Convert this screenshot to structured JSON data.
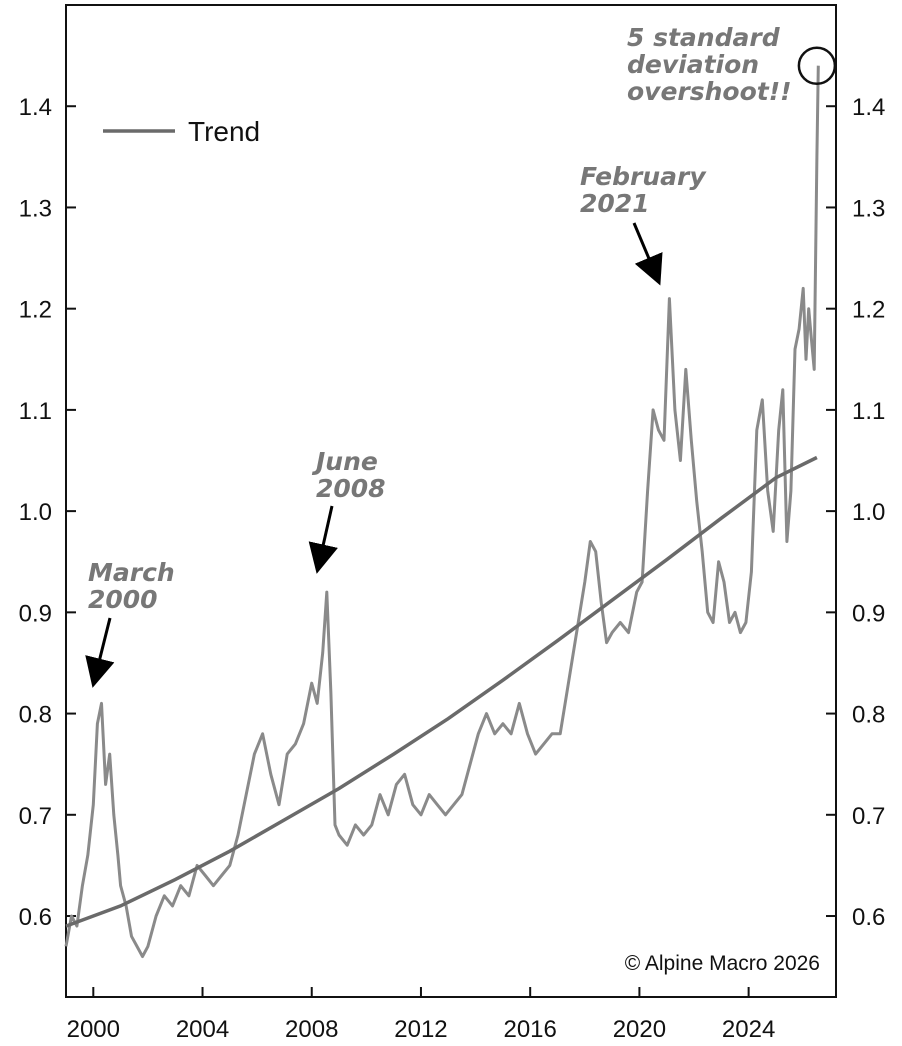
{
  "chart_data": {
    "type": "line",
    "title": "",
    "xlabel": "",
    "ylabel": "",
    "xlim": [
      1999.0,
      2027.2
    ],
    "ylim": [
      0.52,
      1.5
    ],
    "x_ticks": [
      2000,
      2004,
      2008,
      2012,
      2016,
      2020,
      2024
    ],
    "y_ticks": [
      0.6,
      0.7,
      0.8,
      0.9,
      1.0,
      1.1,
      1.2,
      1.3,
      1.4
    ],
    "grid": false,
    "legend": {
      "position": "top-left",
      "entries": [
        "Trend"
      ]
    },
    "colors": {
      "series": "#8a8a8a",
      "trend": "#6a6a6a",
      "annotation": "#777777",
      "axis": "#111111"
    },
    "series": [
      {
        "x": [
          1999.0,
          1999.2,
          1999.4,
          1999.6,
          1999.8,
          2000.0,
          2000.15,
          2000.3,
          2000.45,
          2000.6,
          2000.75,
          2000.9,
          2001.0,
          2001.2,
          2001.4,
          2001.6,
          2001.8,
          2002.0,
          2002.3,
          2002.6,
          2002.9,
          2003.2,
          2003.5,
          2003.8,
          2004.1,
          2004.4,
          2004.7,
          2005.0,
          2005.3,
          2005.6,
          2005.9,
          2006.2,
          2006.5,
          2006.8,
          2007.1,
          2007.4,
          2007.7,
          2008.0,
          2008.2,
          2008.4,
          2008.55,
          2008.7,
          2008.85,
          2009.0,
          2009.3,
          2009.6,
          2009.9,
          2010.2,
          2010.5,
          2010.8,
          2011.1,
          2011.4,
          2011.7,
          2012.0,
          2012.3,
          2012.6,
          2012.9,
          2013.2,
          2013.5,
          2013.8,
          2014.1,
          2014.4,
          2014.7,
          2015.0,
          2015.3,
          2015.6,
          2015.9,
          2016.2,
          2016.5,
          2016.8,
          2017.1,
          2017.4,
          2017.7,
          2018.0,
          2018.2,
          2018.4,
          2018.6,
          2018.8,
          2019.0,
          2019.3,
          2019.6,
          2019.9,
          2020.1,
          2020.3,
          2020.5,
          2020.7,
          2020.9,
          2021.1,
          2021.3,
          2021.5,
          2021.7,
          2021.9,
          2022.1,
          2022.3,
          2022.5,
          2022.7,
          2022.9,
          2023.1,
          2023.3,
          2023.5,
          2023.7,
          2023.9,
          2024.1,
          2024.3,
          2024.5,
          2024.7,
          2024.9,
          2025.1,
          2025.25,
          2025.4,
          2025.55,
          2025.7,
          2025.85,
          2026.0,
          2026.1,
          2026.2,
          2026.3,
          2026.4,
          2026.5,
          2026.55
        ],
        "y": [
          0.57,
          0.6,
          0.59,
          0.63,
          0.66,
          0.71,
          0.79,
          0.81,
          0.73,
          0.76,
          0.7,
          0.66,
          0.63,
          0.61,
          0.58,
          0.57,
          0.56,
          0.57,
          0.6,
          0.62,
          0.61,
          0.63,
          0.62,
          0.65,
          0.64,
          0.63,
          0.64,
          0.65,
          0.68,
          0.72,
          0.76,
          0.78,
          0.74,
          0.71,
          0.76,
          0.77,
          0.79,
          0.83,
          0.81,
          0.86,
          0.92,
          0.82,
          0.69,
          0.68,
          0.67,
          0.69,
          0.68,
          0.69,
          0.72,
          0.7,
          0.73,
          0.74,
          0.71,
          0.7,
          0.72,
          0.71,
          0.7,
          0.71,
          0.72,
          0.75,
          0.78,
          0.8,
          0.78,
          0.79,
          0.78,
          0.81,
          0.78,
          0.76,
          0.77,
          0.78,
          0.78,
          0.83,
          0.88,
          0.93,
          0.97,
          0.96,
          0.91,
          0.87,
          0.88,
          0.89,
          0.88,
          0.92,
          0.93,
          1.02,
          1.1,
          1.08,
          1.07,
          1.21,
          1.1,
          1.05,
          1.14,
          1.07,
          1.01,
          0.96,
          0.9,
          0.89,
          0.95,
          0.93,
          0.89,
          0.9,
          0.88,
          0.89,
          0.94,
          1.08,
          1.11,
          1.02,
          0.98,
          1.08,
          1.12,
          0.97,
          1.02,
          1.16,
          1.18,
          1.22,
          1.15,
          1.2,
          1.17,
          1.14,
          1.35,
          1.44
        ]
      },
      {
        "name": "Trend",
        "x": [
          1999.0,
          2001.0,
          2003.0,
          2005.0,
          2007.0,
          2009.0,
          2011.0,
          2013.0,
          2015.0,
          2017.0,
          2019.0,
          2021.0,
          2023.0,
          2025.0,
          2026.5
        ],
        "y": [
          0.59,
          0.61,
          0.636,
          0.664,
          0.695,
          0.726,
          0.76,
          0.795,
          0.833,
          0.872,
          0.912,
          0.952,
          0.993,
          1.033,
          1.053
        ]
      }
    ],
    "annotations": [
      {
        "lines": [
          "March",
          "2000"
        ],
        "x": 2000.2,
        "y": 0.81
      },
      {
        "lines": [
          "June",
          "2008"
        ],
        "x": 2008.5,
        "y": 0.93
      },
      {
        "lines": [
          "February",
          "2021"
        ],
        "x": 2021.1,
        "y": 1.22
      },
      {
        "lines": [
          "5 standard",
          "deviation",
          "overshoot!!"
        ],
        "x": 2026.5,
        "y": 1.44
      }
    ],
    "copyright": "© Alpine Macro 2026"
  }
}
